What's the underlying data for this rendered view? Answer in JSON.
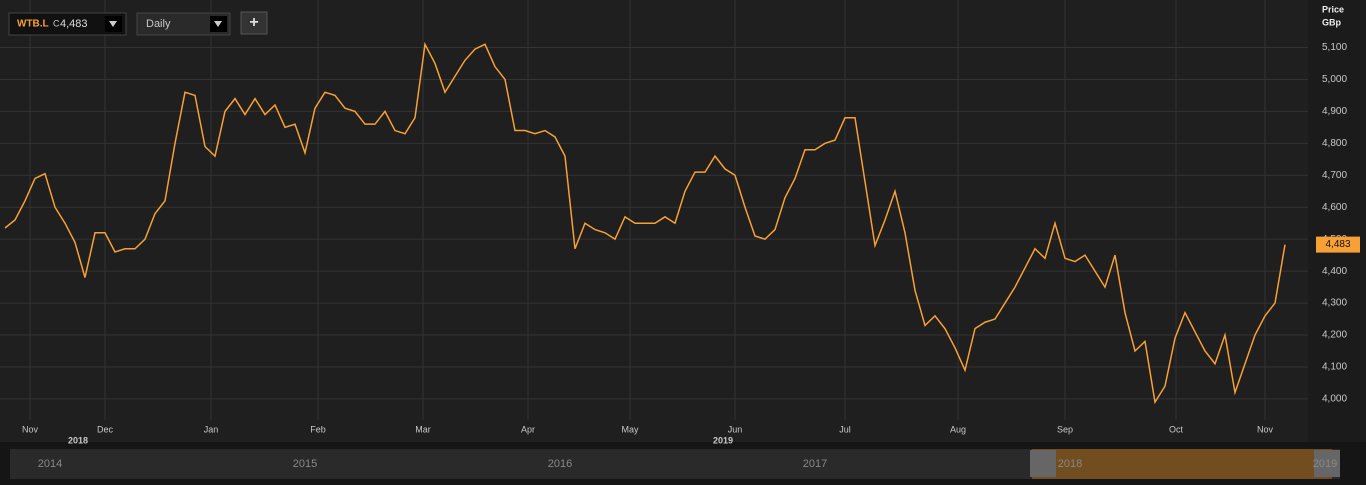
{
  "toolbar": {
    "symbol": "WTB.L",
    "close_prefix": "C",
    "close": "4,483",
    "interval": "Daily",
    "add_button": "+"
  },
  "chart_data": {
    "type": "line",
    "y_axis_title": "Price",
    "y_axis_unit": "GBp",
    "color": "#f7a035",
    "grid": true,
    "values": [
      4535,
      4560,
      4620,
      4690,
      4705,
      4600,
      4550,
      4490,
      4380,
      4520,
      4520,
      4460,
      4470,
      4470,
      4500,
      4580,
      4620,
      4800,
      4960,
      4950,
      4790,
      4760,
      4900,
      4940,
      4890,
      4940,
      4890,
      4920,
      4850,
      4860,
      4770,
      4910,
      4960,
      4950,
      4910,
      4900,
      4860,
      4860,
      4900,
      4840,
      4830,
      4880,
      5110,
      5050,
      4960,
      5010,
      5060,
      5095,
      5110,
      5040,
      5000,
      4840,
      4840,
      4830,
      4840,
      4820,
      4760,
      4470,
      4550,
      4530,
      4520,
      4500,
      4570,
      4550,
      4550,
      4550,
      4570,
      4550,
      4650,
      4710,
      4710,
      4760,
      4720,
      4700,
      4600,
      4510,
      4500,
      4530,
      4630,
      4690,
      4780,
      4780,
      4800,
      4810,
      4880,
      4880,
      4680,
      4480,
      4560,
      4650,
      4520,
      4340,
      4230,
      4260,
      4220,
      4160,
      4090,
      4220,
      4240,
      4250,
      4300,
      4350,
      4410,
      4470,
      4440,
      4550,
      4440,
      4430,
      4450,
      4400,
      4350,
      4450,
      4270,
      4150,
      4180,
      3990,
      4040,
      4190,
      4270,
      4210,
      4150,
      4110,
      4200,
      4020,
      4110,
      4200,
      4260,
      4300,
      4483
    ],
    "last_value_label": "4,483",
    "xlim": [
      0,
      130
    ],
    "xticks": [
      {
        "value": 2.5,
        "label": "Nov"
      },
      {
        "value": 10,
        "label": "Dec"
      },
      {
        "value": 20.6,
        "label": "Jan"
      },
      {
        "value": 31.3,
        "label": "Feb"
      },
      {
        "value": 41.8,
        "label": "Mar"
      },
      {
        "value": 52.3,
        "label": "Apr"
      },
      {
        "value": 62.5,
        "label": "May"
      },
      {
        "value": 73,
        "label": "Jun"
      },
      {
        "value": 84,
        "label": "Jul"
      },
      {
        "value": 95.3,
        "label": "Aug"
      },
      {
        "value": 106,
        "label": "Sep"
      },
      {
        "value": 117.1,
        "label": "Oct"
      },
      {
        "value": 126,
        "label": "Nov"
      }
    ],
    "x_year_labels": [
      {
        "value": 7.3,
        "label": "2018"
      },
      {
        "value": 71.8,
        "label": "2019"
      }
    ],
    "ylim": [
      3934,
      5233
    ],
    "yticks": [
      {
        "value": 4000,
        "label": "4,000"
      },
      {
        "value": 4100,
        "label": "4,100"
      },
      {
        "value": 4200,
        "label": "4,200"
      },
      {
        "value": 4300,
        "label": "4,300"
      },
      {
        "value": 4400,
        "label": "4,400"
      },
      {
        "value": 4500,
        "label": "4,500"
      },
      {
        "value": 4600,
        "label": "4,600"
      },
      {
        "value": 4700,
        "label": "4,700"
      },
      {
        "value": 4800,
        "label": "4,800"
      },
      {
        "value": 4900,
        "label": "4,900"
      },
      {
        "value": 5000,
        "label": "5,000"
      },
      {
        "value": 5100,
        "label": "5,100"
      }
    ]
  },
  "navigator": {
    "years": [
      "2014",
      "2015",
      "2016",
      "2017",
      "2018",
      "2019"
    ]
  }
}
